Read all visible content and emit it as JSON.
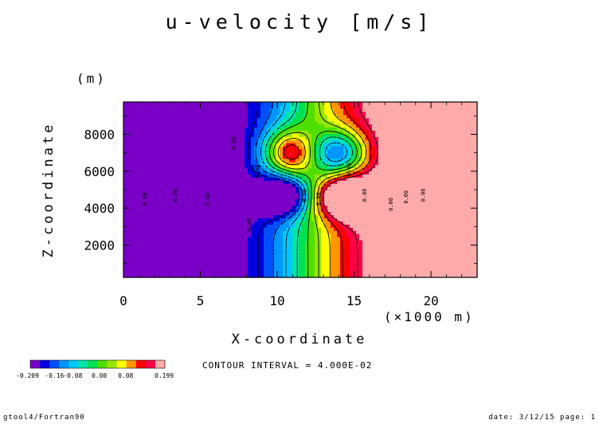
{
  "chart_data": {
    "type": "heatmap",
    "title": "u-velocity [m/s]",
    "xlabel": "X-coordinate",
    "xunit": "(×1000 m)",
    "ylabel": "Z-coordinate",
    "yunit": "(m)",
    "xlim": [
      0,
      23
    ],
    "ylim": [
      250,
      9750
    ],
    "x_ticks": [
      0,
      5,
      10,
      15,
      20
    ],
    "x_tick_labels": [
      "0",
      "5",
      "10",
      "15",
      "20"
    ],
    "y_ticks": [
      2000,
      4000,
      6000,
      8000
    ],
    "y_tick_labels": [
      "2000",
      "4000",
      "6000",
      "8000"
    ],
    "field_range": [
      -0.209,
      0.199
    ],
    "contour_interval_text": "CONTOUR INTERVAL = 4.000E-02",
    "colorbar": {
      "min_label": "-0.209",
      "max_label": "0.199",
      "tick_labels": [
        "-0.16",
        "-0.08",
        "0.00",
        "0.08"
      ],
      "colors": [
        "#7a00c8",
        "#0000e0",
        "#0050ff",
        "#0096ff",
        "#00c8ff",
        "#00e6a8",
        "#00e050",
        "#50e000",
        "#96e600",
        "#ffff00",
        "#ff9600",
        "#ff0000",
        "#ff0046",
        "#ffaaaa"
      ]
    },
    "contour_labels": [
      {
        "x": 1.5,
        "z": 4500,
        "text": "0.00"
      },
      {
        "x": 3.5,
        "z": 4600,
        "text": "-0.08"
      },
      {
        "x": 5.6,
        "z": 4500,
        "text": "0.08"
      },
      {
        "x": 8.8,
        "z": 6000,
        "text": "0.08"
      },
      {
        "x": 7.3,
        "z": 7500,
        "text": "0.00"
      },
      {
        "x": 8.3,
        "z": 3100,
        "text": "0.00"
      },
      {
        "x": 11.9,
        "z": 4600,
        "text": "-0.08"
      },
      {
        "x": 12.8,
        "z": 4500,
        "text": "0.00"
      },
      {
        "x": 14.8,
        "z": 6000,
        "text": "-0.08"
      },
      {
        "x": 15.8,
        "z": 4700,
        "text": "0.08"
      },
      {
        "x": 17.5,
        "z": 4200,
        "text": "0.00"
      },
      {
        "x": 18.5,
        "z": 4600,
        "text": "0.00"
      },
      {
        "x": 19.6,
        "z": 4700,
        "text": "0.08"
      }
    ]
  },
  "footer": {
    "left": "gtool4/Fortran90",
    "right": "date: 3/12/15 page: 1"
  }
}
